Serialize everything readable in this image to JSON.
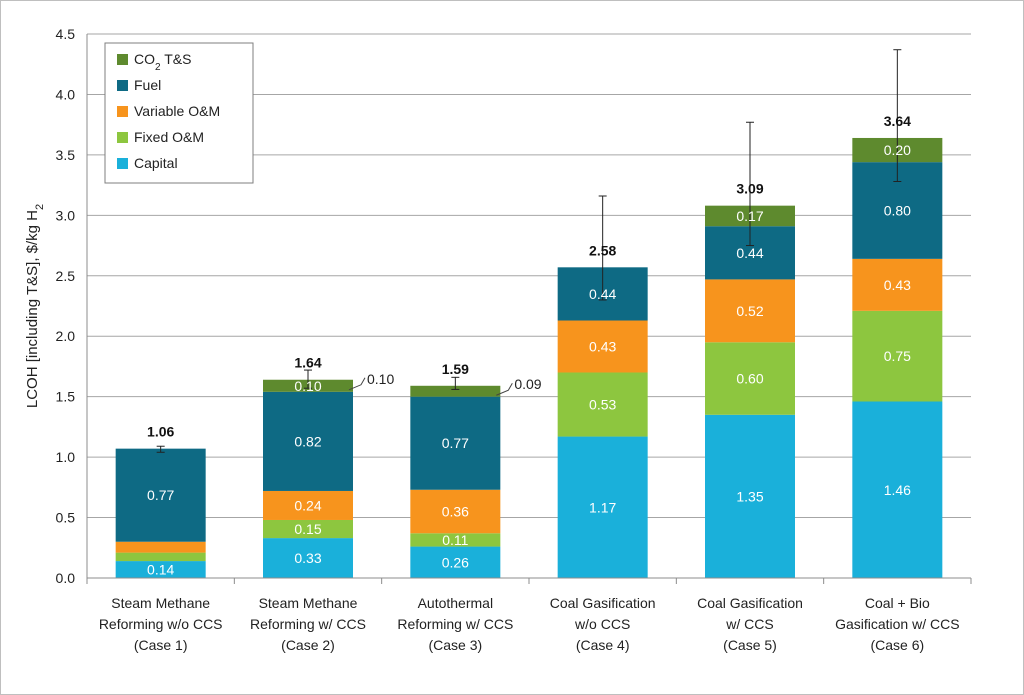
{
  "chart_data": {
    "type": "bar",
    "stacked": true,
    "ylabel_main": "LCOH [including T&S], $/kg H",
    "ylabel_sub": "2",
    "ylim": [
      0,
      4.5
    ],
    "yticks": [
      "0.0",
      "0.5",
      "1.0",
      "1.5",
      "2.0",
      "2.5",
      "3.0",
      "3.5",
      "4.0",
      "4.5"
    ],
    "grid": true,
    "legend_position": "top-left",
    "categories": [
      [
        "Steam Methane",
        "Reforming w/o CCS",
        "(Case 1)"
      ],
      [
        "Steam Methane",
        "Reforming w/ CCS",
        "(Case 2)"
      ],
      [
        "Autothermal",
        "Reforming w/ CCS",
        "(Case 3)"
      ],
      [
        "Coal Gasification",
        "w/o CCS",
        "(Case 4)"
      ],
      [
        "Coal Gasification",
        "w/ CCS",
        "(Case 5)"
      ],
      [
        "Coal + Bio",
        "Gasification w/ CCS",
        "(Case 6)"
      ]
    ],
    "series": [
      {
        "name": "Capital",
        "color": "#1ab0da",
        "text_color": "#ffffff",
        "values": [
          0.14,
          0.33,
          0.26,
          1.17,
          1.35,
          1.46
        ],
        "labels": [
          "0.14",
          "0.33",
          "0.26",
          "1.17",
          "1.35",
          "1.46"
        ]
      },
      {
        "name": "Fixed O&M",
        "color": "#8dc63f",
        "text_color": "#ffffff",
        "values": [
          0.07,
          0.15,
          0.11,
          0.53,
          0.6,
          0.75
        ],
        "labels": [
          "0.07",
          "0.15",
          "0.11",
          "0.53",
          "0.60",
          "0.75"
        ]
      },
      {
        "name": "Variable O&M",
        "color": "#f7941d",
        "text_color": "#ffffff",
        "values": [
          0.09,
          0.24,
          0.36,
          0.43,
          0.52,
          0.43
        ],
        "labels": [
          "0.09",
          "0.24",
          "0.36",
          "0.43",
          "0.52",
          "0.43"
        ]
      },
      {
        "name": "Fuel",
        "color": "#0e6a84",
        "text_color": "#ffffff",
        "values": [
          0.77,
          0.82,
          0.77,
          0.44,
          0.44,
          0.8
        ],
        "labels": [
          "0.77",
          "0.82",
          "0.77",
          "0.44",
          "0.44",
          "0.80"
        ]
      },
      {
        "name_main": "CO",
        "name_sub": "2",
        "name_rest": " T&S",
        "color": "#5e8a2e",
        "text_color": "#ffffff",
        "values": [
          0.0,
          0.1,
          0.09,
          0.0,
          0.17,
          0.2
        ],
        "labels": [
          "",
          "0.10",
          "0.09",
          "",
          "0.17",
          "0.20"
        ]
      }
    ],
    "totals": [
      "1.06",
      "1.64",
      "1.59",
      "2.58",
      "3.09",
      "3.64"
    ],
    "error_bars": [
      {
        "low": 1.04,
        "high": 1.09
      },
      {
        "low": 1.57,
        "high": 1.72
      },
      {
        "low": 1.56,
        "high": 1.66
      },
      {
        "low": 2.3,
        "high": 3.16
      },
      {
        "low": 2.75,
        "high": 3.77
      },
      {
        "low": 3.28,
        "high": 4.37
      }
    ],
    "callouts": [
      {
        "bar": 1,
        "text": "0.10"
      },
      {
        "bar": 2,
        "text": "0.09"
      }
    ]
  }
}
